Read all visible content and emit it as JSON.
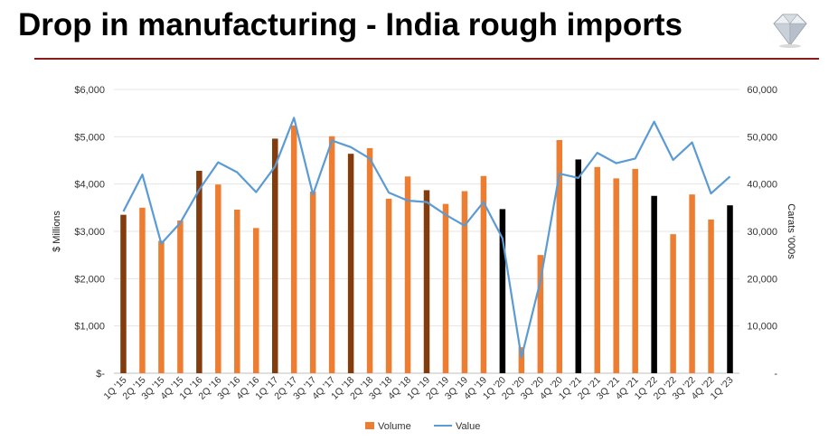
{
  "header": {
    "title": "Drop in manufacturing - India rough imports",
    "logo_icon": "diamond-icon"
  },
  "colors": {
    "title_rule": "#8b1a1a",
    "volume_default": "#ed7d31",
    "volume_q1": "#843c0c",
    "volume_recent_q1": "#000000",
    "value_line": "#5b9bd5",
    "grid": "#e5e5e5"
  },
  "chart_data": {
    "type": "bar",
    "title": "",
    "xlabel": "",
    "ylabel": "$ Millions",
    "y2label": "Carats '000s",
    "ylim": [
      0,
      6000
    ],
    "y2lim": [
      0,
      60000
    ],
    "yticks": [
      "$-",
      "$1,000",
      "$2,000",
      "$3,000",
      "$4,000",
      "$5,000",
      "$6,000"
    ],
    "y2ticks": [
      "-",
      "10,000",
      "20,000",
      "30,000",
      "40,000",
      "50,000",
      "60,000"
    ],
    "grid": true,
    "legend_position": "bottom",
    "categories": [
      "1Q '15",
      "2Q '15",
      "3Q '15",
      "4Q '15",
      "1Q '16",
      "2Q '16",
      "3Q '16",
      "4Q '16",
      "1Q '17",
      "2Q '17",
      "3Q '17",
      "4Q '17",
      "1Q '18",
      "2Q '18",
      "3Q '18",
      "4Q '18",
      "1Q '19",
      "2Q '19",
      "3Q '19",
      "4Q '19",
      "1Q '20",
      "2Q '20",
      "3Q '20",
      "4Q '20",
      "1Q '21",
      "2Q '21",
      "3Q '21",
      "4Q '21",
      "1Q '22",
      "2Q '22",
      "3Q '22",
      "4Q '22",
      "1Q '23"
    ],
    "series": [
      {
        "name": "Volume",
        "type": "bar",
        "axis": "right",
        "values": [
          33500,
          35000,
          28000,
          32300,
          42800,
          39900,
          34600,
          30700,
          49600,
          52400,
          38400,
          50100,
          46400,
          47600,
          36900,
          41600,
          38700,
          35800,
          38500,
          41700,
          34700,
          5500,
          25000,
          49300,
          45200,
          43600,
          41200,
          43200,
          37500,
          29400,
          37800,
          32500,
          35500
        ]
      },
      {
        "name": "Value",
        "type": "line",
        "axis": "left",
        "values": [
          3420,
          4200,
          2740,
          3180,
          3880,
          4460,
          4250,
          3830,
          4370,
          5400,
          3780,
          4920,
          4780,
          4540,
          3820,
          3650,
          3620,
          3350,
          3120,
          3620,
          2850,
          330,
          1950,
          4220,
          4130,
          4660,
          4440,
          4540,
          5320,
          4510,
          4880,
          3800,
          4160
        ]
      }
    ],
    "bar_color_groups": [
      "q1",
      "default",
      "default",
      "default",
      "q1",
      "default",
      "default",
      "default",
      "q1",
      "default",
      "default",
      "default",
      "q1",
      "default",
      "default",
      "default",
      "q1",
      "default",
      "default",
      "default",
      "recent_q1",
      "default",
      "default",
      "default",
      "recent_q1",
      "default",
      "default",
      "default",
      "recent_q1",
      "default",
      "default",
      "default",
      "recent_q1"
    ]
  }
}
